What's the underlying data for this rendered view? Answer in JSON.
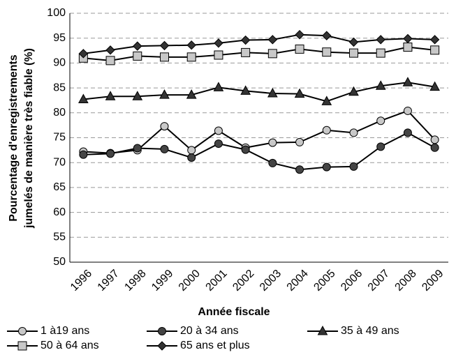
{
  "chart_data": {
    "type": "line",
    "x_label": "Année fiscale",
    "y_label": [
      "Pourcentage d'enregistrements",
      "jumelés de manière très fiable (%)"
    ],
    "categories": [
      "1996",
      "1997",
      "1998",
      "1999",
      "2000",
      "2001",
      "2002",
      "2003",
      "2004",
      "2005",
      "2006",
      "2007",
      "2008",
      "2009"
    ],
    "ylim": [
      50,
      100
    ],
    "yticks": [
      50,
      55,
      60,
      65,
      70,
      75,
      80,
      85,
      90,
      95,
      100
    ],
    "grid": true,
    "legend": "bottom",
    "series": [
      {
        "name": "1 à19 ans",
        "color": "#c8c8c8",
        "marker": "circle",
        "values": [
          72.2,
          71.9,
          72.5,
          77.3,
          72.5,
          76.4,
          73.0,
          74.0,
          74.1,
          76.5,
          76.0,
          78.4,
          80.4,
          74.6
        ]
      },
      {
        "name": "20 à 34 ans",
        "color": "#444444",
        "marker": "circle",
        "values": [
          71.6,
          71.8,
          72.9,
          72.7,
          71.0,
          73.8,
          72.6,
          69.9,
          68.6,
          69.1,
          69.2,
          73.2,
          76.0,
          73.0
        ]
      },
      {
        "name": "35 à 49 ans",
        "color": "#333333",
        "marker": "triangle",
        "values": [
          82.7,
          83.3,
          83.3,
          83.6,
          83.6,
          85.1,
          84.4,
          83.9,
          83.8,
          82.3,
          84.2,
          85.4,
          86.1,
          85.2
        ]
      },
      {
        "name": "50 à 64 ans",
        "color": "#c8c8c8",
        "marker": "square",
        "values": [
          91.0,
          90.5,
          91.4,
          91.2,
          91.2,
          91.6,
          92.1,
          91.9,
          92.8,
          92.2,
          92.0,
          92.0,
          93.2,
          92.6
        ]
      },
      {
        "name": "65 ans et plus",
        "color": "#333333",
        "marker": "diamond",
        "values": [
          91.9,
          92.6,
          93.4,
          93.5,
          93.6,
          94.0,
          94.6,
          94.7,
          95.7,
          95.5,
          94.2,
          94.7,
          94.9,
          94.7
        ]
      }
    ]
  }
}
